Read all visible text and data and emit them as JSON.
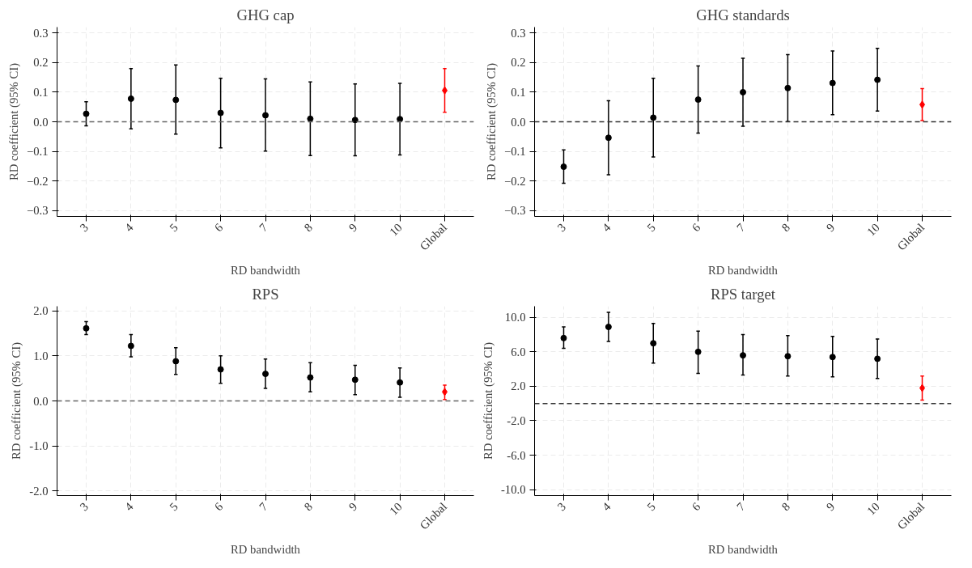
{
  "chart_data": [
    {
      "type": "scatter",
      "title": "GHG cap",
      "xlabel": "RD bandwidth",
      "ylabel": "RD coefficient (95% CI)",
      "categories": [
        "3",
        "4",
        "5",
        "6",
        "7",
        "8",
        "9",
        "10",
        "Global"
      ],
      "ylim": [
        -0.32,
        0.32
      ],
      "yticks": [
        -0.3,
        -0.2,
        -0.1,
        {
          "value": 0,
          "label": "0.0"
        },
        0.1,
        0.2,
        0.3
      ],
      "grid": true,
      "ref_lines": [
        {
          "axis": "y",
          "value": 0,
          "color": "#666666",
          "line_style": "dashed"
        }
      ],
      "series": [
        {
          "color": "#000000",
          "marker": "circle",
          "values": [
            0.027,
            0.078,
            0.074,
            0.03,
            0.022,
            0.01,
            0.006,
            0.009,
            null
          ],
          "errors": [
            [
              -0.014,
              0.068
            ],
            [
              -0.024,
              0.18
            ],
            [
              -0.042,
              0.192
            ],
            [
              -0.088,
              0.147
            ],
            [
              -0.099,
              0.145
            ],
            [
              -0.114,
              0.135
            ],
            [
              -0.115,
              0.128
            ],
            [
              -0.112,
              0.13
            ],
            null
          ]
        },
        {
          "color": "#ff0000",
          "marker": "diamond",
          "values": [
            null,
            null,
            null,
            null,
            null,
            null,
            null,
            null,
            0.106
          ],
          "errors": [
            null,
            null,
            null,
            null,
            null,
            null,
            null,
            null,
            [
              0.032,
              0.18
            ]
          ]
        }
      ]
    },
    {
      "type": "scatter",
      "title": "GHG standards",
      "xlabel": "RD bandwidth",
      "ylabel": "RD coefficient (95% CI)",
      "categories": [
        "3",
        "4",
        "5",
        "6",
        "7",
        "8",
        "9",
        "10",
        "Global"
      ],
      "ylim": [
        -0.32,
        0.32
      ],
      "yticks": [
        -0.3,
        -0.2,
        -0.1,
        {
          "value": 0,
          "label": "0.0"
        },
        0.1,
        0.2,
        0.3
      ],
      "grid": true,
      "ref_lines": [
        {
          "axis": "y",
          "value": 0,
          "color": "#333333",
          "line_style": "dashed"
        }
      ],
      "series": [
        {
          "color": "#000000",
          "marker": "circle",
          "values": [
            -0.152,
            -0.054,
            0.014,
            0.075,
            0.1,
            0.114,
            0.131,
            0.142,
            null
          ],
          "errors": [
            [
              -0.208,
              -0.095
            ],
            [
              -0.179,
              0.071
            ],
            [
              -0.119,
              0.147
            ],
            [
              -0.038,
              0.189
            ],
            [
              -0.015,
              0.215
            ],
            [
              0.001,
              0.227
            ],
            [
              0.024,
              0.239
            ],
            [
              0.036,
              0.248
            ],
            null
          ]
        },
        {
          "color": "#ff0000",
          "marker": "diamond",
          "values": [
            null,
            null,
            null,
            null,
            null,
            null,
            null,
            null,
            0.058
          ],
          "errors": [
            null,
            null,
            null,
            null,
            null,
            null,
            null,
            null,
            [
              0.004,
              0.112
            ]
          ]
        }
      ]
    },
    {
      "type": "scatter",
      "title": "RPS",
      "xlabel": "RD bandwidth",
      "ylabel": "RD coefficient (95% CI)",
      "categories": [
        "3",
        "4",
        "5",
        "6",
        "7",
        "8",
        "9",
        "10",
        "Global"
      ],
      "ylim": [
        -2.1,
        2.1
      ],
      "yticks": [
        {
          "value": -2,
          "label": "-2.0"
        },
        {
          "value": -1,
          "label": "-1.0"
        },
        {
          "value": 0,
          "label": "0.0"
        },
        {
          "value": 1,
          "label": "1.0"
        },
        {
          "value": 2,
          "label": "2.0"
        }
      ],
      "grid": true,
      "ref_lines": [
        {
          "axis": "y",
          "value": 0,
          "color": "#666666",
          "line_style": "dashed"
        }
      ],
      "series": [
        {
          "color": "#000000",
          "marker": "circle",
          "values": [
            1.61,
            1.22,
            0.88,
            0.7,
            0.6,
            0.52,
            0.47,
            0.41,
            null
          ],
          "errors": [
            [
              1.47,
              1.76
            ],
            [
              0.98,
              1.47
            ],
            [
              0.59,
              1.18
            ],
            [
              0.39,
              1.0
            ],
            [
              0.28,
              0.93
            ],
            [
              0.2,
              0.85
            ],
            [
              0.14,
              0.79
            ],
            [
              0.08,
              0.73
            ],
            null
          ]
        },
        {
          "color": "#ff0000",
          "marker": "diamond",
          "values": [
            null,
            null,
            null,
            null,
            null,
            null,
            null,
            null,
            0.2
          ],
          "errors": [
            null,
            null,
            null,
            null,
            null,
            null,
            null,
            null,
            [
              0.03,
              0.35
            ]
          ]
        }
      ]
    },
    {
      "type": "scatter",
      "title": "RPS target",
      "xlabel": "RD bandwidth",
      "ylabel": "RD coefficient (95% CI)",
      "categories": [
        "3",
        "4",
        "5",
        "6",
        "7",
        "8",
        "9",
        "10",
        "Global"
      ],
      "ylim": [
        -10.7,
        11.3
      ],
      "yticks": [
        {
          "value": -10,
          "label": "-10.0"
        },
        {
          "value": -6,
          "label": "-6.0"
        },
        {
          "value": -2,
          "label": "-2.0"
        },
        {
          "value": 2,
          "label": "2.0"
        },
        {
          "value": 6,
          "label": "6.0"
        },
        {
          "value": 10,
          "label": "10.0"
        }
      ],
      "grid": true,
      "ref_lines": [
        {
          "axis": "y",
          "value": 0,
          "color": "#333333",
          "line_style": "dashed"
        }
      ],
      "series": [
        {
          "color": "#000000",
          "marker": "circle",
          "values": [
            7.6,
            8.9,
            7.0,
            6.0,
            5.6,
            5.5,
            5.4,
            5.2,
            null
          ],
          "errors": [
            [
              6.4,
              8.9
            ],
            [
              7.2,
              10.6
            ],
            [
              4.7,
              9.3
            ],
            [
              3.5,
              8.4
            ],
            [
              3.3,
              8.0
            ],
            [
              3.2,
              7.9
            ],
            [
              3.1,
              7.8
            ],
            [
              2.9,
              7.5
            ],
            null
          ]
        },
        {
          "color": "#ff0000",
          "marker": "diamond",
          "values": [
            null,
            null,
            null,
            null,
            null,
            null,
            null,
            null,
            1.8
          ],
          "errors": [
            null,
            null,
            null,
            null,
            null,
            null,
            null,
            null,
            [
              0.4,
              3.2
            ]
          ]
        }
      ]
    }
  ]
}
